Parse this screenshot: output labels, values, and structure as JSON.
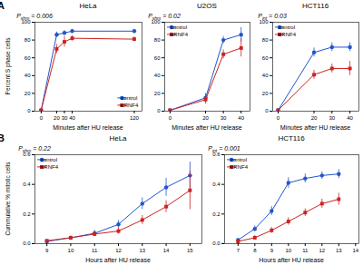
{
  "chart_data": [
    {
      "type": "line",
      "panel_label": "A",
      "title": "HeLa",
      "xlabel": "Minutes after HU release",
      "ylabel": "Percent S phase cells",
      "xlim": [
        -8,
        130
      ],
      "ylim": [
        0,
        100
      ],
      "xticks": [
        0,
        20,
        30,
        40,
        120
      ],
      "yticks": [
        0,
        20,
        40,
        60,
        80,
        100
      ],
      "legend": "lower right",
      "annotations": [
        {
          "text": "P",
          "subscript": "shm",
          "text_after": " = 0.006"
        }
      ],
      "x": [
        0,
        20,
        30,
        40,
        120
      ],
      "series": [
        {
          "name": "control",
          "color": "#2255cc",
          "marker": "circle",
          "values": [
            1,
            86,
            88,
            90,
            90
          ],
          "error": [
            0.5,
            3,
            2.5,
            2,
            2
          ]
        },
        {
          "name": "siRNF4",
          "color": "#cc2222",
          "marker": "square",
          "values": [
            1,
            70,
            78,
            82,
            81
          ],
          "error": [
            0.5,
            5,
            6,
            3,
            2.5
          ]
        }
      ]
    },
    {
      "type": "line",
      "title": "U2OS",
      "xlabel": "Minutes after HU release",
      "xlim": [
        -3,
        45
      ],
      "ylim": [
        0,
        100
      ],
      "xticks": [
        0,
        20,
        30,
        40
      ],
      "yticks": [
        0,
        20,
        40,
        60,
        80,
        100
      ],
      "legend": "upper left",
      "annotations": [
        {
          "text": "P",
          "subscript": "shm",
          "text_after": " = 0.02"
        }
      ],
      "x": [
        0,
        20,
        30,
        40
      ],
      "series": [
        {
          "name": "control",
          "color": "#2255cc",
          "marker": "circle",
          "values": [
            1,
            15,
            80,
            86
          ],
          "error": [
            0.5,
            5,
            4,
            8
          ]
        },
        {
          "name": "siRNF4",
          "color": "#cc2222",
          "marker": "square",
          "values": [
            1,
            13,
            64,
            71
          ],
          "error": [
            0.5,
            5,
            5,
            10
          ]
        }
      ]
    },
    {
      "type": "line",
      "title": "HCT116",
      "xlabel": "Minutes after HU release",
      "xlim": [
        -3,
        45
      ],
      "ylim": [
        0,
        100
      ],
      "xticks": [
        0,
        20,
        30,
        40
      ],
      "yticks": [
        0,
        20,
        40,
        60,
        80,
        100
      ],
      "legend": "upper left",
      "annotations": [
        {
          "text": "P",
          "subscript": "int",
          "text_after": " = 0.03"
        }
      ],
      "x": [
        0,
        20,
        30,
        40
      ],
      "series": [
        {
          "name": "control",
          "color": "#2255cc",
          "marker": "circle",
          "values": [
            1,
            66,
            72,
            72
          ],
          "error": [
            0.5,
            5,
            5,
            5
          ]
        },
        {
          "name": "siRNF4",
          "color": "#cc2222",
          "marker": "square",
          "values": [
            1,
            41,
            48,
            48
          ],
          "error": [
            0.5,
            5,
            5,
            8
          ]
        }
      ]
    },
    {
      "type": "line",
      "panel_label": "B",
      "title": "HeLa",
      "xlabel": "Hours after HU release",
      "ylabel": "Cummulative % mitotic cells",
      "xlim": [
        8.5,
        15.5
      ],
      "ylim": [
        0,
        0.6
      ],
      "xticks": [
        9,
        10,
        11,
        12,
        13,
        14,
        15
      ],
      "yticks": [
        {
          "value": 0,
          "label": "0.0"
        },
        0.2,
        0.4,
        0.6
      ],
      "legend": "upper left",
      "annotations": [
        {
          "text": "P",
          "subscript": "shm",
          "text_after": " = 0.22"
        }
      ],
      "x": [
        9,
        10,
        11,
        12,
        13,
        14,
        15
      ],
      "series": [
        {
          "name": "control",
          "color": "#2255cc",
          "marker": "circle",
          "values": [
            0.015,
            0.04,
            0.07,
            0.13,
            0.27,
            0.38,
            0.46
          ],
          "error": [
            0.005,
            0.01,
            0.02,
            0.025,
            0.04,
            0.06,
            0.09
          ]
        },
        {
          "name": "siRNF4",
          "color": "#cc2222",
          "marker": "square",
          "values": [
            0.02,
            0.04,
            0.065,
            0.085,
            0.16,
            0.25,
            0.36
          ],
          "error": [
            0.005,
            0.01,
            0.015,
            0.02,
            0.03,
            0.04,
            0.13
          ]
        }
      ]
    },
    {
      "type": "line",
      "title": "HCT116",
      "xlabel": "Hours after HU release",
      "xlim": [
        6.2,
        14.2
      ],
      "ylim": [
        0,
        0.6
      ],
      "xticks": [
        7,
        8,
        9,
        10,
        11,
        12,
        13,
        14
      ],
      "yticks": [
        {
          "value": 0,
          "label": "0.0"
        },
        0.2,
        0.4,
        0.6
      ],
      "legend": "upper left",
      "annotations": [
        {
          "text": "P",
          "subscript": "int",
          "text_after": " = 0.001"
        }
      ],
      "x": [
        7,
        8,
        9,
        10,
        11,
        12,
        13
      ],
      "series": [
        {
          "name": "control",
          "color": "#2255cc",
          "marker": "circle",
          "values": [
            0.025,
            0.1,
            0.22,
            0.41,
            0.44,
            0.46,
            0.47
          ],
          "error": [
            0.008,
            0.02,
            0.03,
            0.035,
            0.03,
            0.025,
            0.03
          ]
        },
        {
          "name": "siRNF4",
          "color": "#cc2222",
          "marker": "square",
          "values": [
            0.015,
            0.04,
            0.09,
            0.15,
            0.21,
            0.27,
            0.3
          ],
          "error": [
            0.005,
            0.015,
            0.02,
            0.025,
            0.025,
            0.03,
            0.04
          ]
        }
      ]
    }
  ]
}
